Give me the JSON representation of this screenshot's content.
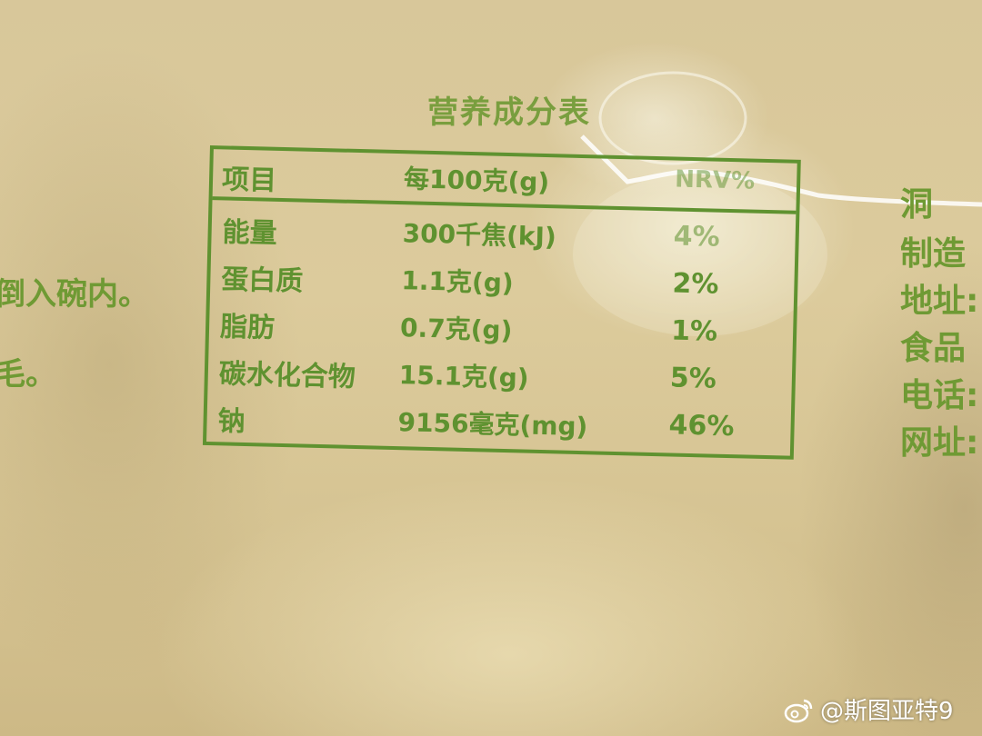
{
  "nutrition_table": {
    "title": "营养成分表",
    "headers": {
      "item": "项目",
      "per_100g": "每100克(g)",
      "nrv": "NRV%"
    },
    "rows": [
      {
        "name": "能量",
        "value": "300千焦(kJ)",
        "nrv": "4%"
      },
      {
        "name": "蛋白质",
        "value": "1.1克(g)",
        "nrv": "2%"
      },
      {
        "name": "脂肪",
        "value": "0.7克(g)",
        "nrv": "1%"
      },
      {
        "name": "碳水化合物",
        "value": "15.1克(g)",
        "nrv": "5%"
      },
      {
        "name": "钠",
        "value": "9156毫克(mg)",
        "nrv": "46%"
      }
    ]
  },
  "left_text": {
    "line1": "倒入碗内。",
    "line2": "毛。"
  },
  "right_text": {
    "lines": [
      "洞",
      "制造",
      "地址:",
      "食品",
      "电话:",
      "网址:"
    ]
  },
  "watermark": {
    "text": "@斯图亚特9"
  },
  "colors": {
    "print_green": "#5f9230",
    "background_cream": "#d9c99a"
  }
}
